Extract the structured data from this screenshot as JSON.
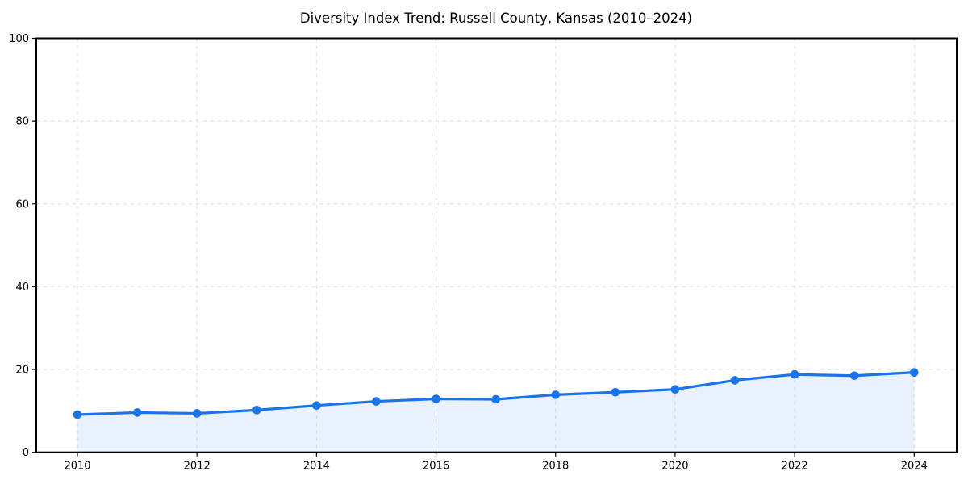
{
  "chart_data": {
    "type": "area",
    "title": "Diversity Index Trend: Russell County, Kansas (2010–2024)",
    "xlabel": "",
    "ylabel": "",
    "x": [
      2010,
      2011,
      2012,
      2013,
      2014,
      2015,
      2016,
      2017,
      2018,
      2019,
      2020,
      2021,
      2022,
      2023,
      2024
    ],
    "values": [
      9.1,
      9.6,
      9.4,
      10.2,
      11.3,
      12.3,
      12.9,
      12.8,
      13.9,
      14.5,
      15.2,
      17.4,
      18.8,
      18.5,
      19.3
    ],
    "series_name": "Diversity Index",
    "ylim": [
      0,
      100
    ],
    "yticks": [
      0,
      20,
      40,
      60,
      80,
      100
    ],
    "xticks": [
      2010,
      2012,
      2014,
      2016,
      2018,
      2020,
      2022,
      2024
    ],
    "grid": true,
    "grid_style": "dashed",
    "legend": "none",
    "colors": {
      "line": "#1a73e8",
      "marker": "#1a73e8",
      "area_fill": "rgba(26,115,232,0.10)",
      "gridline": "#dcdcdc",
      "spine": "#000000",
      "tick": "#000000",
      "text": "#000000",
      "background": "#ffffff"
    }
  }
}
